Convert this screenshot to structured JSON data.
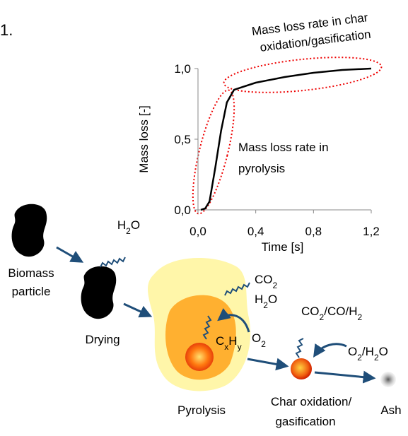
{
  "panel_label": "1.",
  "chart_data": {
    "type": "line",
    "x": [
      0.02,
      0.05,
      0.08,
      0.12,
      0.16,
      0.2,
      0.25,
      0.4,
      0.6,
      0.8,
      1.0,
      1.2
    ],
    "values": [
      0.0,
      0.01,
      0.06,
      0.3,
      0.56,
      0.76,
      0.85,
      0.9,
      0.94,
      0.97,
      0.99,
      1.0
    ],
    "color": "#000000",
    "xlim": [
      0,
      1.2
    ],
    "ylim": [
      0,
      1.0
    ],
    "xticks": [
      {
        "value": 0,
        "label": "0,0"
      },
      {
        "value": 0.4,
        "label": "0,4"
      },
      {
        "value": 0.8,
        "label": "0,8"
      },
      {
        "value": 1.2,
        "label": "1,2"
      }
    ],
    "yticks": [
      {
        "value": 0,
        "label": "0,0"
      },
      {
        "value": 0.5,
        "label": "0,5"
      },
      {
        "value": 1.0,
        "label": "1,0"
      }
    ],
    "xlabel": "Time [s]",
    "ylabel": "Mass loss [-]",
    "annotations": [
      [
        "Mass loss rate in char",
        "oxidation/gasification"
      ],
      [
        "Mass loss rate in",
        "pyrolysis"
      ]
    ]
  },
  "diagram": {
    "biomass": [
      "Biomass",
      "particle"
    ],
    "drying": "Drying",
    "drying_gas": "H2O",
    "pyrolysis": "Pyrolysis",
    "pyro_gas": [
      "CO2",
      "H2O"
    ],
    "volatiles": "CxHy",
    "pyro_oxidant": "O2",
    "char": [
      "Char oxidation/",
      "gasification"
    ],
    "char_gas": "CO2/CO/H2",
    "char_oxidant": "O2/H2O",
    "ash": "Ash"
  }
}
